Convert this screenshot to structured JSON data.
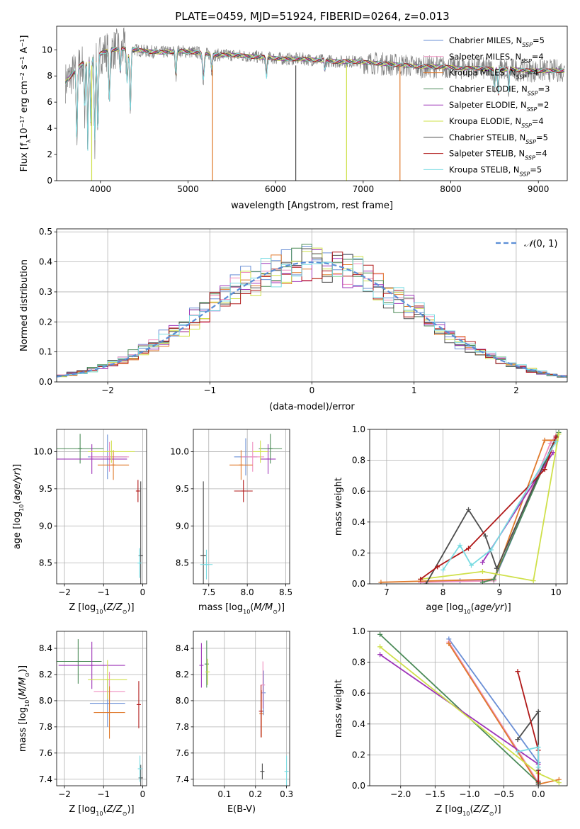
{
  "figure": {
    "title": "PLATE=0459, MJD=51924, FIBERID=0264, z=0.013"
  },
  "models": [
    {
      "name": "Chabrier MILES, N_SSP=5",
      "color": "#6a8fd6"
    },
    {
      "name": "Salpeter MILES, N_SSP=4",
      "color": "#ef8fbf"
    },
    {
      "name": "Kroupa MILES, N_SSP=4",
      "color": "#e07a2c"
    },
    {
      "name": "Chabrier ELODIE, N_SSP=3",
      "color": "#4a8a57"
    },
    {
      "name": "Salpeter ELODIE, N_SSP=2",
      "color": "#9e35b8"
    },
    {
      "name": "Kroupa ELODIE, N_SSP=4",
      "color": "#cfe04a"
    },
    {
      "name": "Chabrier STELIB, N_SSP=5",
      "color": "#4d4d4d"
    },
    {
      "name": "Salpeter STELIB, N_SSP=4",
      "color": "#b01818"
    },
    {
      "name": "Kroupa STELIB, N_SSP=5",
      "color": "#78dbe2"
    }
  ],
  "chart_data": [
    {
      "id": "spectrum",
      "type": "line",
      "xlabel": "wavelength [Angstrom, rest frame]",
      "ylabel": "Flux [f_λ 10^-17 erg cm^-2 s^-1 A^-1]",
      "xlim": [
        3500,
        9330
      ],
      "ylim": [
        0,
        11.8
      ],
      "xticks": [
        4000,
        5000,
        6000,
        7000,
        8000,
        9000
      ],
      "yticks": [
        0,
        2,
        4,
        6,
        8,
        10
      ],
      "grid": false,
      "legend_position": "right",
      "data_color": "#808080",
      "continuum": {
        "x": [
          3600,
          3700,
          3800,
          3900,
          4000,
          4100,
          4300,
          4500,
          4700,
          4900,
          5100,
          5300,
          5500,
          5700,
          5900,
          6100,
          6300,
          6500,
          6700,
          6900,
          7100,
          7300,
          7500,
          7700,
          7900,
          8100,
          8300,
          8500,
          8700,
          8900,
          9100,
          9300
        ],
        "y": [
          7.5,
          8.3,
          9.0,
          9.3,
          9.7,
          10.0,
          10.1,
          9.9,
          9.8,
          9.9,
          9.8,
          9.6,
          9.6,
          9.5,
          9.4,
          9.3,
          9.3,
          9.2,
          9.1,
          9.1,
          9.0,
          8.9,
          8.8,
          8.7,
          8.7,
          8.6,
          8.6,
          8.5,
          8.5,
          8.4,
          8.4,
          8.4
        ]
      },
      "absorption": [
        {
          "x": 3730,
          "depth": 5.5,
          "width": 10
        },
        {
          "x": 3820,
          "depth": 4.0,
          "width": 8
        },
        {
          "x": 3855,
          "depth": 6.8,
          "width": 8
        },
        {
          "x": 3890,
          "depth": 5.0,
          "width": 9
        },
        {
          "x": 3935,
          "depth": 6.5,
          "width": 10
        },
        {
          "x": 3970,
          "depth": 5.8,
          "width": 10
        },
        {
          "x": 4102,
          "depth": 4.0,
          "width": 10
        },
        {
          "x": 4227,
          "depth": 2.0,
          "width": 8
        },
        {
          "x": 4305,
          "depth": 2.5,
          "width": 12
        },
        {
          "x": 4341,
          "depth": 5.0,
          "width": 10
        },
        {
          "x": 4861,
          "depth": 2.0,
          "width": 10
        },
        {
          "x": 5175,
          "depth": 2.0,
          "width": 14
        },
        {
          "x": 5270,
          "depth": 1.2,
          "width": 10
        },
        {
          "x": 5895,
          "depth": 1.5,
          "width": 10
        },
        {
          "x": 6563,
          "depth": 0.8,
          "width": 8
        },
        {
          "x": 8500,
          "depth": 1.5,
          "width": 8
        },
        {
          "x": 8542,
          "depth": 2.0,
          "width": 8
        },
        {
          "x": 8662,
          "depth": 1.8,
          "width": 8
        }
      ],
      "spikes": [
        {
          "x": 3900,
          "color": "#cfe04a"
        },
        {
          "x": 5280,
          "color": "#e07a2c"
        },
        {
          "x": 6230,
          "color": "#4d4d4d"
        },
        {
          "x": 6810,
          "color": "#cfe04a"
        },
        {
          "x": 7420,
          "color": "#e07a2c"
        }
      ]
    },
    {
      "id": "residuals",
      "type": "histogram",
      "xlabel": "(data-model)/error",
      "ylabel": "Normed distribution",
      "xlim": [
        -2.5,
        2.5
      ],
      "ylim": [
        0,
        0.51
      ],
      "xticks": [
        -2,
        -1,
        0,
        1,
        2
      ],
      "yticks": [
        0.0,
        0.1,
        0.2,
        0.3,
        0.4,
        0.5
      ],
      "grid": true,
      "legend": "N(0,1)",
      "legend_position": "top-right",
      "gauss_color": "#5b8ed6",
      "bin_width": 0.1
    },
    {
      "id": "age_vs_Z",
      "type": "scatter",
      "xlabel": "Z [log10(Z/Z☉)]",
      "ylabel": "age [log10(age/yr)]",
      "xlim": [
        -2.2,
        0.1
      ],
      "ylim": [
        8.22,
        10.3
      ],
      "xticks": [
        -2,
        -1,
        0
      ],
      "yticks": [
        8.5,
        9.0,
        9.5,
        10.0
      ],
      "grid": true,
      "points": [
        {
          "model": 0,
          "x": -0.9,
          "y": 9.93,
          "xerr": 0.5,
          "yerr": 0.3
        },
        {
          "model": 1,
          "x": -0.85,
          "y": 9.93,
          "xerr": 0.5,
          "yerr": 0.2
        },
        {
          "model": 2,
          "x": -0.75,
          "y": 9.82,
          "xerr": 0.4,
          "yerr": 0.2
        },
        {
          "model": 3,
          "x": -1.6,
          "y": 10.04,
          "xerr": 0.6,
          "yerr": 0.2
        },
        {
          "model": 4,
          "x": -1.3,
          "y": 9.9,
          "xerr": 0.9,
          "yerr": 0.2
        },
        {
          "model": 5,
          "x": -0.8,
          "y": 10.0,
          "xerr": 0.6,
          "yerr": 0.15
        },
        {
          "model": 6,
          "x": -0.05,
          "y": 8.6,
          "xerr": 0.05,
          "yerr": 1.0
        },
        {
          "model": 7,
          "x": -0.12,
          "y": 9.47,
          "xerr": 0.03,
          "yerr": 0.15
        },
        {
          "model": 8,
          "x": -0.08,
          "y": 8.5,
          "xerr": 0.02,
          "yerr": 0.2
        }
      ]
    },
    {
      "id": "age_vs_mass",
      "type": "scatter",
      "xlabel": "mass [log10(M/M☉)]",
      "ylabel": "",
      "xlim": [
        7.3,
        8.55
      ],
      "ylim": [
        8.22,
        10.3
      ],
      "xticks": [
        7.5,
        8.0,
        8.5
      ],
      "yticks": [
        8.5,
        9.0,
        9.5,
        10.0
      ],
      "grid": true,
      "points": [
        {
          "model": 0,
          "x": 7.98,
          "y": 9.93,
          "xerr": 0.15,
          "yerr": 0.25
        },
        {
          "model": 1,
          "x": 8.07,
          "y": 9.93,
          "xerr": 0.15,
          "yerr": 0.2
        },
        {
          "model": 2,
          "x": 7.92,
          "y": 9.82,
          "xerr": 0.15,
          "yerr": 0.2
        },
        {
          "model": 3,
          "x": 8.3,
          "y": 10.04,
          "xerr": 0.15,
          "yerr": 0.2
        },
        {
          "model": 4,
          "x": 8.27,
          "y": 9.9,
          "xerr": 0.1,
          "yerr": 0.2
        },
        {
          "model": 5,
          "x": 8.17,
          "y": 10.0,
          "xerr": 0.1,
          "yerr": 0.15
        },
        {
          "model": 6,
          "x": 7.43,
          "y": 8.6,
          "xerr": 0.04,
          "yerr": 1.0
        },
        {
          "model": 7,
          "x": 7.95,
          "y": 9.47,
          "xerr": 0.12,
          "yerr": 0.15
        },
        {
          "model": 8,
          "x": 7.47,
          "y": 8.48,
          "xerr": 0.08,
          "yerr": 0.2
        }
      ]
    },
    {
      "id": "weight_vs_age",
      "type": "line",
      "xlabel": "age [log10(age/yr)]",
      "ylabel": "mass weight",
      "xlim": [
        6.7,
        10.2
      ],
      "ylim": [
        0,
        1.0
      ],
      "xticks": [
        7,
        8,
        9,
        10
      ],
      "yticks": [
        0.0,
        0.2,
        0.4,
        0.6,
        0.8,
        1.0
      ],
      "grid": true,
      "series": [
        {
          "model": 0,
          "x": [
            7.6,
            8.3,
            8.9,
            10.0
          ],
          "y": [
            0.01,
            0.02,
            0.02,
            0.95
          ]
        },
        {
          "model": 1,
          "x": [
            7.6,
            8.9,
            9.9,
            10.0
          ],
          "y": [
            0.01,
            0.02,
            0.91,
            0.96
          ]
        },
        {
          "model": 2,
          "x": [
            6.9,
            8.9,
            9.8,
            10.0
          ],
          "y": [
            0.01,
            0.03,
            0.93,
            0.93
          ]
        },
        {
          "model": 3,
          "x": [
            8.7,
            8.9,
            10.05
          ],
          "y": [
            0.01,
            0.03,
            0.98
          ]
        },
        {
          "model": 4,
          "x": [
            8.7,
            9.95
          ],
          "y": [
            0.14,
            0.85
          ]
        },
        {
          "model": 5,
          "x": [
            7.6,
            8.7,
            9.6,
            10.05
          ],
          "y": [
            0.03,
            0.08,
            0.02,
            0.97
          ]
        },
        {
          "model": 6,
          "x": [
            7.7,
            8.45,
            8.75,
            8.95,
            10.0
          ],
          "y": [
            0.0,
            0.48,
            0.31,
            0.1,
            0.95
          ]
        },
        {
          "model": 7,
          "x": [
            7.6,
            7.9,
            8.45,
            9.8,
            10.0
          ],
          "y": [
            0.03,
            0.11,
            0.23,
            0.74,
            0.95
          ]
        },
        {
          "model": 8,
          "x": [
            8.0,
            8.3,
            8.5,
            8.85,
            10.0
          ],
          "y": [
            0.09,
            0.25,
            0.12,
            0.22,
            0.92
          ]
        }
      ]
    },
    {
      "id": "mass_vs_Z",
      "type": "scatter",
      "xlabel": "Z [log10(Z/Z☉)]",
      "ylabel": "mass [log10(M/M☉)]",
      "xlim": [
        -2.2,
        0.1
      ],
      "ylim": [
        7.35,
        8.53
      ],
      "xticks": [
        -2,
        -1,
        0
      ],
      "yticks": [
        7.4,
        7.6,
        7.8,
        8.0,
        8.2,
        8.4
      ],
      "grid": true,
      "points": [
        {
          "model": 0,
          "x": -0.9,
          "y": 7.98,
          "xerr": 0.45,
          "yerr": 0.18
        },
        {
          "model": 1,
          "x": -0.85,
          "y": 8.07,
          "xerr": 0.4,
          "yerr": 0.15
        },
        {
          "model": 2,
          "x": -0.85,
          "y": 7.91,
          "xerr": 0.4,
          "yerr": 0.2
        },
        {
          "model": 3,
          "x": -1.65,
          "y": 8.3,
          "xerr": 0.6,
          "yerr": 0.17
        },
        {
          "model": 4,
          "x": -1.3,
          "y": 8.27,
          "xerr": 0.85,
          "yerr": 0.18
        },
        {
          "model": 5,
          "x": -0.9,
          "y": 8.16,
          "xerr": 0.5,
          "yerr": 0.15
        },
        {
          "model": 6,
          "x": -0.05,
          "y": 7.41,
          "xerr": 0.05,
          "yerr": 0.1
        },
        {
          "model": 7,
          "x": -0.1,
          "y": 7.97,
          "xerr": 0.04,
          "yerr": 0.18
        },
        {
          "model": 8,
          "x": -0.07,
          "y": 7.48,
          "xerr": 0.02,
          "yerr": 0.1
        }
      ]
    },
    {
      "id": "mass_vs_ebv",
      "type": "scatter",
      "xlabel": "E(B-V)",
      "ylabel": "",
      "xlim": [
        0.0,
        0.31
      ],
      "ylim": [
        7.35,
        8.53
      ],
      "xticks": [
        0.1,
        0.2,
        0.3
      ],
      "yticks": [
        7.4,
        7.6,
        7.8,
        8.0,
        8.2,
        8.4
      ],
      "grid": true,
      "points": [
        {
          "model": 0,
          "x": 0.226,
          "y": 8.06,
          "xerr": 0.0,
          "yerr": 0.17
        },
        {
          "model": 1,
          "x": 0.224,
          "y": 8.12,
          "xerr": 0.0,
          "yerr": 0.18
        },
        {
          "model": 2,
          "x": 0.219,
          "y": 7.9,
          "xerr": 0.0,
          "yerr": 0.18
        },
        {
          "model": 3,
          "x": 0.043,
          "y": 8.28,
          "xerr": 0.0,
          "yerr": 0.18
        },
        {
          "model": 4,
          "x": 0.026,
          "y": 8.27,
          "xerr": 0.0,
          "yerr": 0.17
        },
        {
          "model": 5,
          "x": 0.046,
          "y": 8.22,
          "xerr": 0.0,
          "yerr": 0.1
        },
        {
          "model": 6,
          "x": 0.222,
          "y": 7.46,
          "xerr": 0.0,
          "yerr": 0.06
        },
        {
          "model": 7,
          "x": 0.218,
          "y": 7.92,
          "xerr": 0.0,
          "yerr": 0.2
        },
        {
          "model": 8,
          "x": 0.3,
          "y": 7.46,
          "xerr": 0.0,
          "yerr": 0.12
        }
      ]
    },
    {
      "id": "weight_vs_Z",
      "type": "line",
      "xlabel": "Z [log10(Z/Z☉)]",
      "ylabel": "mass weight",
      "xlim": [
        -2.45,
        0.42
      ],
      "ylim": [
        0,
        1.0
      ],
      "xticks": [
        -2.0,
        -1.5,
        -1.0,
        -0.5,
        0.0
      ],
      "yticks": [
        0.0,
        0.2,
        0.4,
        0.6,
        0.8,
        1.0
      ],
      "grid": true,
      "series": [
        {
          "model": 0,
          "x": [
            -1.3,
            0.0,
            0.0
          ],
          "y": [
            0.95,
            0.15,
            0.02
          ]
        },
        {
          "model": 1,
          "x": [
            -1.3,
            0.0
          ],
          "y": [
            0.93,
            0.02
          ]
        },
        {
          "model": 2,
          "x": [
            -1.3,
            0.0,
            0.3
          ],
          "y": [
            0.92,
            0.01,
            0.04
          ]
        },
        {
          "model": 3,
          "x": [
            -2.3,
            0.0
          ],
          "y": [
            0.98,
            0.02
          ]
        },
        {
          "model": 4,
          "x": [
            -2.3,
            0.0
          ],
          "y": [
            0.85,
            0.14
          ]
        },
        {
          "model": 5,
          "x": [
            -2.3,
            0.0,
            0.3
          ],
          "y": [
            0.9,
            0.08,
            0.02
          ]
        },
        {
          "model": 6,
          "x": [
            -0.3,
            0.0,
            0.0,
            0.0
          ],
          "y": [
            0.3,
            0.48,
            0.1,
            0.01
          ]
        },
        {
          "model": 7,
          "x": [
            -0.3,
            0.0,
            0.0
          ],
          "y": [
            0.74,
            0.23,
            0.03
          ]
        },
        {
          "model": 8,
          "x": [
            -0.3,
            0.0,
            0.0
          ],
          "y": [
            0.22,
            0.25,
            0.12
          ]
        }
      ]
    }
  ]
}
